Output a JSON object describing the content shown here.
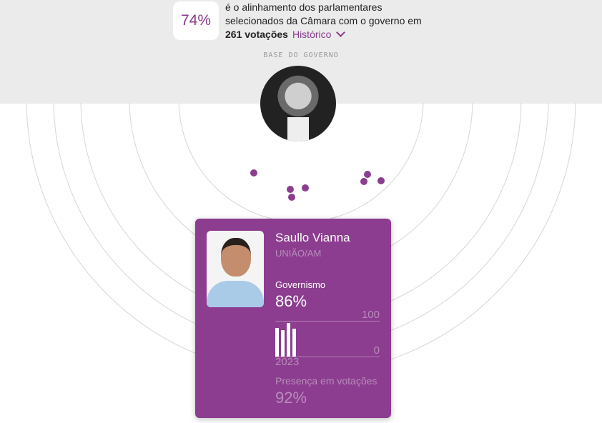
{
  "summary": {
    "percent": "74%",
    "text": "é o alinhamento dos parlamentares selecionados da Câmara com o governo em",
    "votes": "261 votações",
    "history_label": "Histórico"
  },
  "base_label": "BASE DO GOVERNO",
  "accent": "#8c3d8f",
  "card": {
    "name": "Saullo Vianna",
    "party": "UNIÃO/AM",
    "gov_label": "Governismo",
    "gov_value": "86%",
    "axis_max": "100",
    "axis_min": "0",
    "year": "2023",
    "bars": [
      80,
      74,
      94,
      78
    ],
    "presence_label": "Presença em votações",
    "presence_value": "92%"
  }
}
